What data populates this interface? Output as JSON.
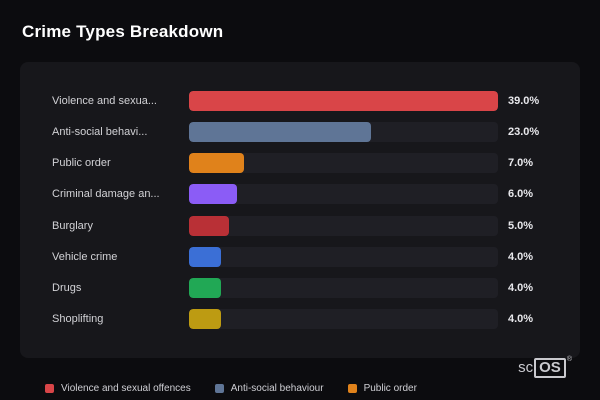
{
  "title": "Crime Types Breakdown",
  "chart_data": {
    "type": "bar",
    "orientation": "horizontal",
    "title": "Crime Types Breakdown",
    "categories": [
      "Violence and sexua...",
      "Anti-social behavi...",
      "Public order",
      "Criminal damage an...",
      "Burglary",
      "Vehicle crime",
      "Drugs",
      "Shoplifting"
    ],
    "values": [
      39.0,
      23.0,
      7.0,
      6.0,
      5.0,
      4.0,
      4.0,
      4.0
    ],
    "value_labels": [
      "39.0%",
      "23.0%",
      "7.0%",
      "6.0%",
      "5.0%",
      "4.0%",
      "4.0%",
      "4.0%"
    ],
    "bar_colors": [
      "#d94548",
      "#5f7596",
      "#e0821b",
      "#8b5cf6",
      "#b93036",
      "#3b6fd6",
      "#21a855",
      "#bd9b12"
    ],
    "max_value": 39.0,
    "xlim": [
      0,
      39
    ],
    "grid": false,
    "legend_position": "bottom",
    "legend": [
      {
        "label": "Violence and sexual offences",
        "color": "#d94548"
      },
      {
        "label": "Anti-social behaviour",
        "color": "#5f7596"
      },
      {
        "label": "Public order",
        "color": "#e0821b"
      }
    ]
  },
  "logo": {
    "prefix": "sc",
    "boxed": "OS",
    "registered": "®"
  }
}
